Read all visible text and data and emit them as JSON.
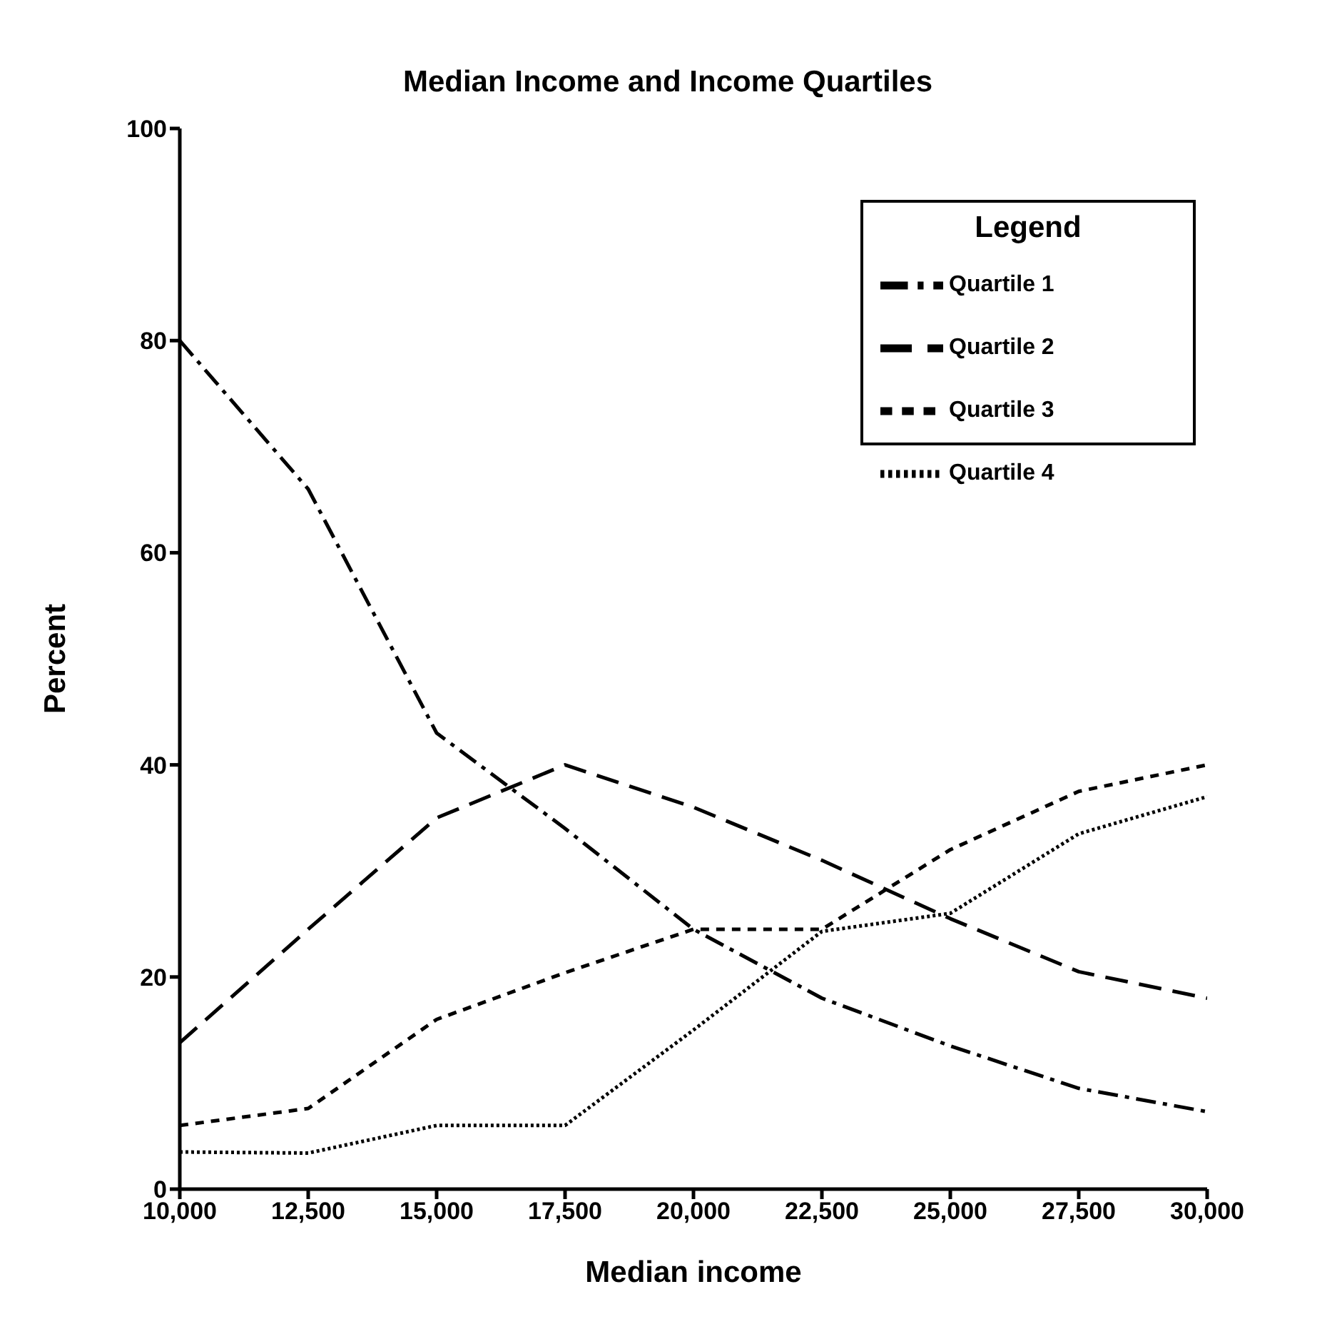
{
  "chart_data": {
    "type": "line",
    "title": "Median Income and Income Quartiles",
    "xlabel": "Median income",
    "ylabel": "Percent",
    "legend_title": "Legend",
    "x": [
      10000,
      12500,
      15000,
      17500,
      20000,
      22500,
      25000,
      27500,
      30000
    ],
    "series": [
      {
        "name": "Quartile 1",
        "color": "#000000",
        "line_style": "dashdot",
        "values": [
          80,
          66,
          43,
          34,
          24.5,
          18,
          13.5,
          9.5,
          7.3
        ]
      },
      {
        "name": "Quartile 2",
        "color": "#000000",
        "line_style": "longdash",
        "values": [
          13.8,
          24.5,
          35,
          40,
          36,
          31,
          25.5,
          20.5,
          18
        ]
      },
      {
        "name": "Quartile 3",
        "color": "#000000",
        "line_style": "dashed",
        "values": [
          6,
          7.6,
          16,
          20.4,
          24.5,
          24.5,
          32,
          37.5,
          40
        ]
      },
      {
        "name": "Quartile 4",
        "color": "#000000",
        "line_style": "dotted",
        "values": [
          3.5,
          3.4,
          6,
          6,
          15,
          24.3,
          26,
          33.5,
          37
        ]
      }
    ],
    "xlim": [
      10000,
      30000
    ],
    "xticks": [
      {
        "value": 10000,
        "label": "10,000"
      },
      {
        "value": 12500,
        "label": "12,500"
      },
      {
        "value": 15000,
        "label": "15,000"
      },
      {
        "value": 17500,
        "label": "17,500"
      },
      {
        "value": 20000,
        "label": "20,000"
      },
      {
        "value": 22500,
        "label": "22,500"
      },
      {
        "value": 25000,
        "label": "25,000"
      },
      {
        "value": 27500,
        "label": "27,500"
      },
      {
        "value": 30000,
        "label": "30,000"
      }
    ],
    "ylim": [
      0,
      100
    ],
    "yticks": [
      0,
      20,
      40,
      60,
      80,
      100
    ],
    "grid": false,
    "legend": "top right",
    "marker": "none"
  }
}
